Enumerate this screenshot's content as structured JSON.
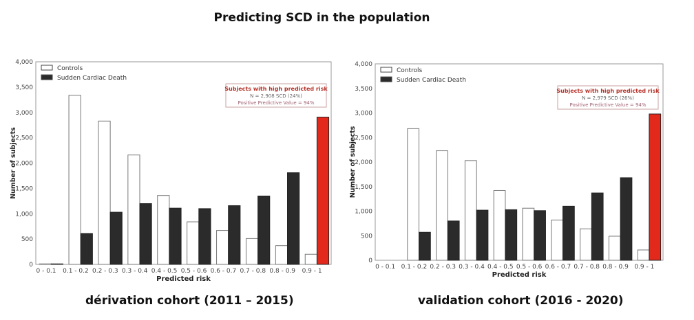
{
  "title": "Predicting SCD in the population",
  "chart_data": [
    {
      "type": "bar",
      "caption": "dérivation cohort (2011 – 2015)",
      "xlabel": "Predicted risk",
      "ylabel": "Number of subjects",
      "ylim": [
        0,
        4000
      ],
      "yticks": [
        0,
        500,
        1000,
        1500,
        2000,
        2500,
        3000,
        3500,
        4000
      ],
      "ytick_labels": [
        "0",
        "500",
        "1,000",
        "1,500",
        "2,000",
        "2,500",
        "3,000",
        "3,500",
        "4,000"
      ],
      "categories": [
        "0 - 0.1",
        "0.1 - 0.2",
        "0.2 - 0.3",
        "0.3 - 0.4",
        "0.4 - 0.5",
        "0.5 - 0.6",
        "0.6 - 0.7",
        "0.7 - 0.8",
        "0.8 - 0.9",
        "0.9 - 1"
      ],
      "series": [
        {
          "name": "Controls",
          "color": "#ffffff",
          "values": [
            10,
            3340,
            2830,
            2160,
            1360,
            840,
            670,
            510,
            370,
            200
          ]
        },
        {
          "name": "Sudden Cardiac Death",
          "color": "#2b2b2b",
          "highlight_last": "#e3281c",
          "values": [
            10,
            610,
            1030,
            1200,
            1110,
            1100,
            1160,
            1350,
            1810,
            2908
          ]
        }
      ],
      "legend": "top-left",
      "annotation": {
        "title": "Subjects with high predicted risk",
        "line1": "N = 2,908 SCD (24%)",
        "line2": "Positive Predictive Value = 94%",
        "placement": "top-right"
      }
    },
    {
      "type": "bar",
      "caption": "validation cohort (2016 - 2020)",
      "xlabel": "Predicted risk",
      "ylabel": "Number of subjects",
      "ylim": [
        0,
        4000
      ],
      "yticks": [
        0,
        500,
        1000,
        1500,
        2000,
        2500,
        3000,
        3500,
        4000
      ],
      "ytick_labels": [
        "0",
        "500",
        "1,000",
        "1,500",
        "2,000",
        "2,500",
        "3,000",
        "3,500",
        "4,000"
      ],
      "categories": [
        "0 - 0.1",
        "0.1 - 0.2",
        "0.2 - 0.3",
        "0.3 - 0.4",
        "0.4 - 0.5",
        "0.5 - 0.6",
        "0.6 - 0.7",
        "0.7 - 0.8",
        "0.8 - 0.9",
        "0.9 - 1"
      ],
      "series": [
        {
          "name": "Controls",
          "color": "#ffffff",
          "values": [
            0,
            2680,
            2230,
            2030,
            1420,
            1060,
            820,
            640,
            490,
            210
          ]
        },
        {
          "name": "Sudden Cardiac Death",
          "color": "#2b2b2b",
          "highlight_last": "#e3281c",
          "values": [
            0,
            570,
            800,
            1020,
            1030,
            1010,
            1100,
            1370,
            1680,
            2979
          ]
        }
      ],
      "legend": "top-left",
      "annotation": {
        "title": "Subjects with high predicted risk",
        "line1": "N = 2,979 SCD (26%)",
        "line2": "Positive Predictive Value = 94%",
        "placement": "top-right"
      }
    }
  ]
}
